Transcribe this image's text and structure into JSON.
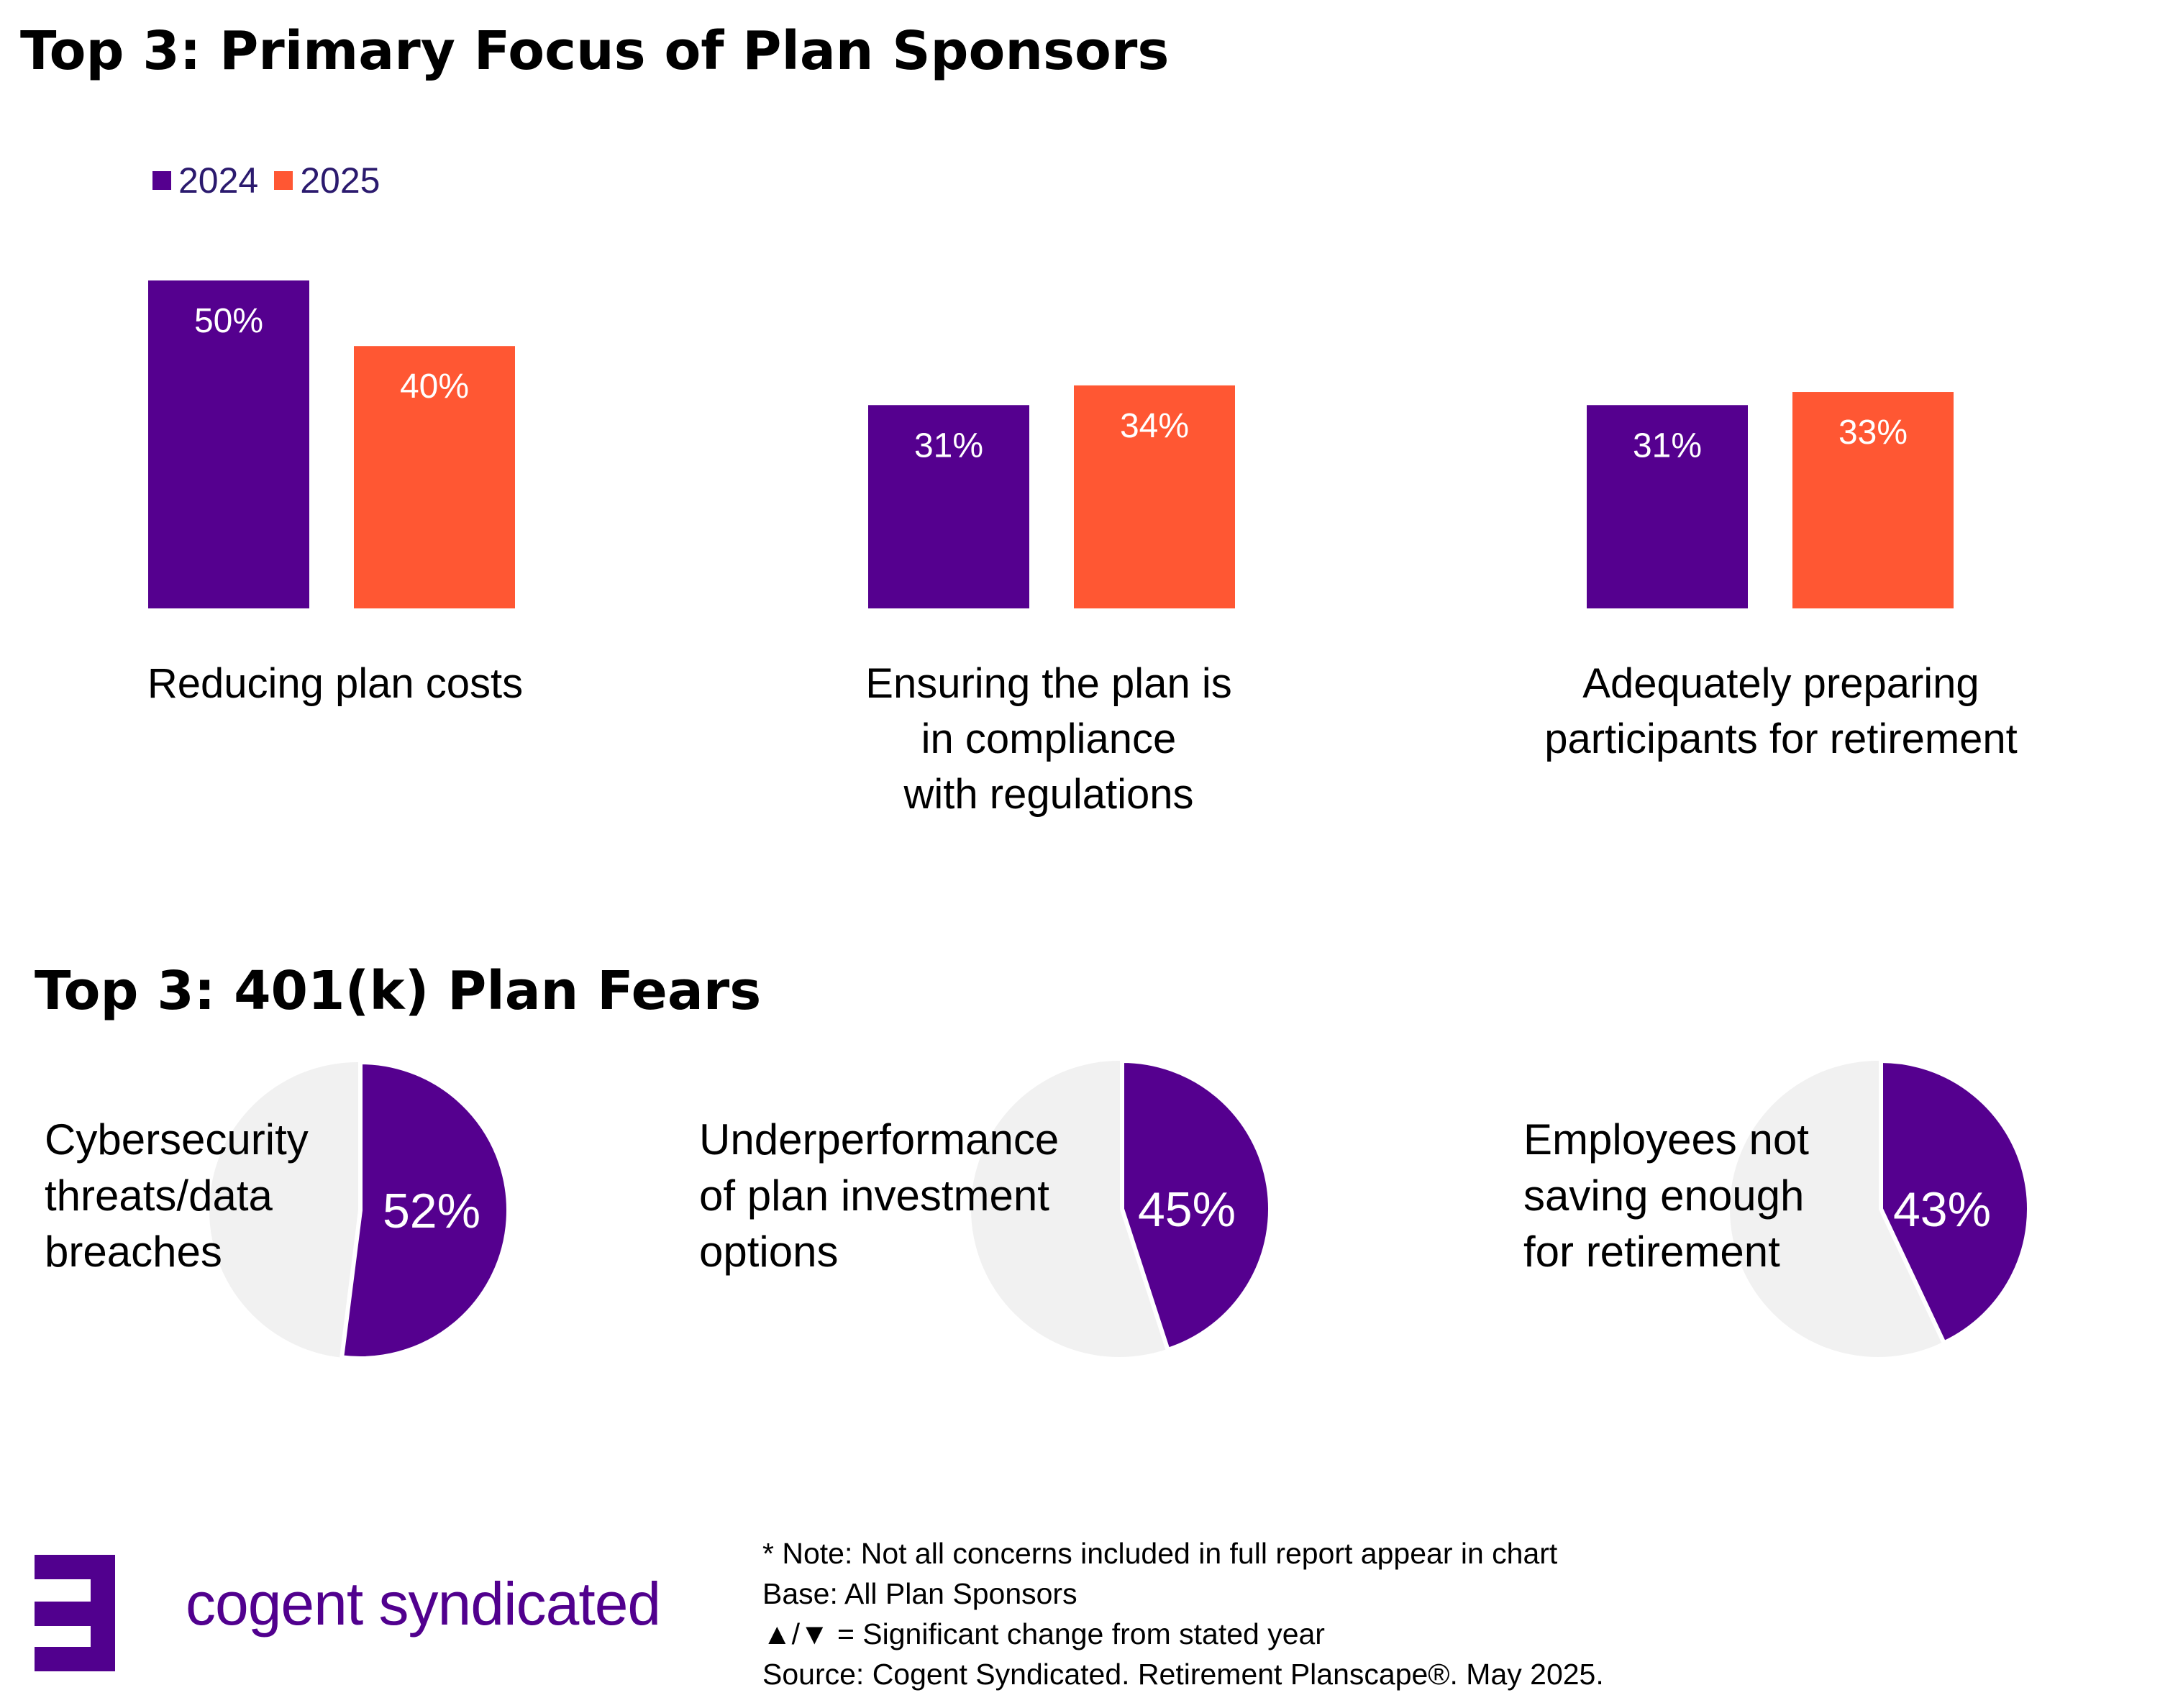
{
  "titles": {
    "bar_section": "Top 3: Primary Focus of Plan Sponsors",
    "pie_section": "Top 3: 401(k) Plan Fears"
  },
  "colors": {
    "series_2024": "#55008f",
    "series_2025": "#ff5733",
    "pie_remainder": "#f1f1f1",
    "logo": "#51008e"
  },
  "chart_data": [
    {
      "type": "bar",
      "title": "Top 3: Primary Focus of Plan Sponsors",
      "categories": [
        "Reducing plan costs",
        "Ensuring the plan is\nin compliance\nwith regulations",
        "Adequately preparing\nparticipants for retirement"
      ],
      "series": [
        {
          "name": "2024",
          "values": [
            50,
            31,
            31
          ],
          "labels": [
            "50%",
            "31%",
            "31%"
          ]
        },
        {
          "name": "2025",
          "values": [
            40,
            34,
            33
          ],
          "labels": [
            "40%",
            "34%",
            "33%"
          ]
        }
      ],
      "legend_position": "top-left",
      "ylim": [
        0,
        50
      ],
      "grid": false
    },
    {
      "type": "pie",
      "title": "Top 3: 401(k) Plan Fears",
      "slices": [
        {
          "label": "Cybersecurity\nthreats/data\nbreaches",
          "value": 52,
          "value_label": "52%"
        },
        {
          "label": "Underperformance\nof plan investment\noptions",
          "value": 45,
          "value_label": "45%"
        },
        {
          "label": "Employees not\nsaving enough\nfor retirement",
          "value": 43,
          "value_label": "43%"
        }
      ]
    }
  ],
  "logo": {
    "text": "cogent syndicated"
  },
  "notes": [
    "* Note: Not all concerns included in full report appear in chart",
    "Base: All Plan Sponsors",
    "▲/▼ = Significant change from stated year",
    "Source: Cogent Syndicated. Retirement Planscape®. May 2025."
  ]
}
